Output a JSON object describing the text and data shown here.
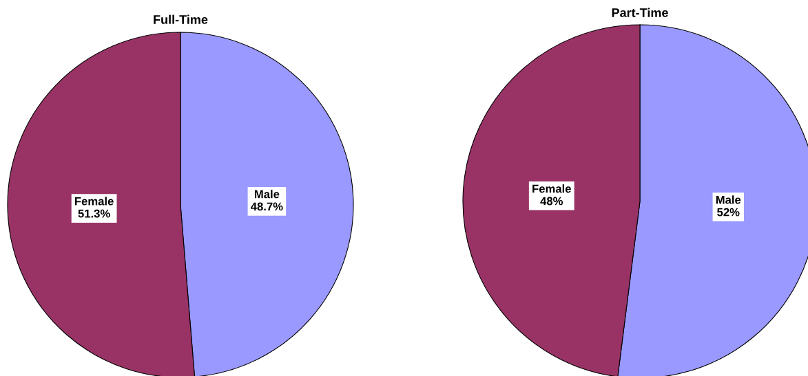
{
  "chart_data": [
    {
      "type": "pie",
      "title": "Full-Time",
      "categories": [
        "Male",
        "Female"
      ],
      "values": [
        48.7,
        51.3
      ],
      "colors": [
        "#9999ff",
        "#993366"
      ],
      "value_labels": [
        "48.7%",
        "51.3%"
      ]
    },
    {
      "type": "pie",
      "title": "Part-Time",
      "categories": [
        "Male",
        "Female"
      ],
      "values": [
        52,
        48
      ],
      "colors": [
        "#9999ff",
        "#993366"
      ],
      "value_labels": [
        "52%",
        "48%"
      ]
    }
  ]
}
